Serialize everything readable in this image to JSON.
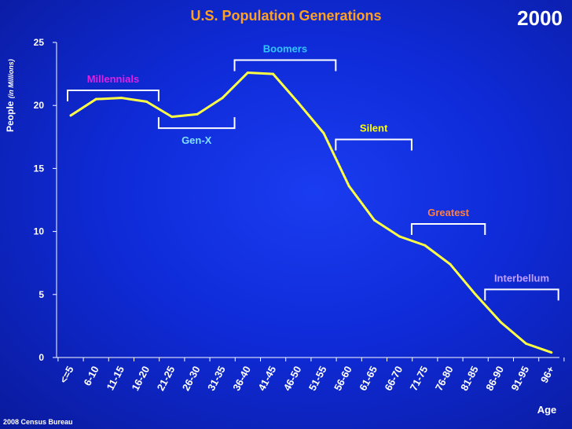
{
  "chart_data": {
    "type": "line",
    "title": "U.S. Population Generations",
    "year": "2000",
    "ylabel": "People",
    "ylabel_unit": "(in Millions)",
    "xlabel": "Age",
    "source": "2008 Census Bureau",
    "categories": [
      "<=5",
      "6-10",
      "11-15",
      "16-20",
      "21-25",
      "26-30",
      "31-35",
      "36-40",
      "41-45",
      "46-50",
      "51-55",
      "56-60",
      "61-65",
      "66-70",
      "71-75",
      "76-80",
      "81-85",
      "86-90",
      "91-95",
      "96+"
    ],
    "values": [
      19.2,
      20.5,
      20.6,
      20.3,
      19.1,
      19.3,
      20.6,
      22.6,
      22.5,
      20.2,
      17.8,
      13.6,
      10.9,
      9.6,
      8.9,
      7.4,
      5.0,
      2.8,
      1.1,
      0.4
    ],
    "yticks": [
      0,
      5,
      10,
      15,
      20,
      25
    ],
    "ylim": [
      0,
      25
    ],
    "line_color": "#ffff44",
    "generations": [
      {
        "name": "Millennials",
        "color": "#e020e0",
        "from": 0,
        "to": 3.6,
        "level": 21.2,
        "side": "above"
      },
      {
        "name": "Gen-X",
        "color": "#80e0ff",
        "from": 3.6,
        "to": 6.6,
        "level": 18.2,
        "side": "below"
      },
      {
        "name": "Boomers",
        "color": "#30c8ff",
        "from": 6.6,
        "to": 10.6,
        "level": 23.6,
        "side": "above"
      },
      {
        "name": "Silent",
        "color": "#ffff00",
        "from": 10.6,
        "to": 13.6,
        "level": 17.3,
        "side": "above"
      },
      {
        "name": "Greatest",
        "color": "#ff8040",
        "from": 13.6,
        "to": 16.5,
        "level": 10.6,
        "side": "above"
      },
      {
        "name": "Interbellum",
        "color": "#c0a0ff",
        "from": 16.5,
        "to": 19.4,
        "level": 5.4,
        "side": "above"
      }
    ]
  }
}
